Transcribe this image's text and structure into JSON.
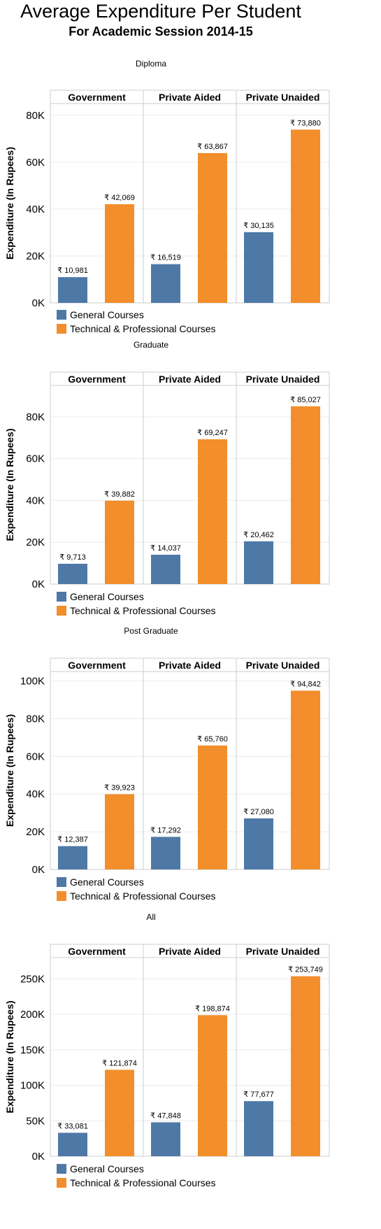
{
  "title": "Average Expenditure Per Student",
  "subtitle": "For Academic Session 2014-15",
  "colors": {
    "general": "#4e79a7",
    "technical": "#f28e2b",
    "grid": "#ececec",
    "border": "#cccccc"
  },
  "chart_data": [
    {
      "type": "bar",
      "title": "Diploma",
      "categories": [
        "Government",
        "Private Aided",
        "Private Unaided"
      ],
      "ylabel": "Expenditure (In Rupees)",
      "ylim": [
        0,
        85000
      ],
      "yticks": [
        0,
        20000,
        40000,
        60000,
        80000
      ],
      "ytick_labels": [
        "0K",
        "20K",
        "40K",
        "60K",
        "80K"
      ],
      "series": [
        {
          "name": "General Courses",
          "values": [
            10981,
            16519,
            30135
          ],
          "labels": [
            "₹ 10,981",
            "₹ 16,519",
            "₹ 30,135"
          ]
        },
        {
          "name": "Technical & Professional Courses",
          "values": [
            42069,
            63867,
            73880
          ],
          "labels": [
            "₹ 42,069",
            "₹ 63,867",
            "₹ 73,880"
          ]
        }
      ]
    },
    {
      "type": "bar",
      "title": "Graduate",
      "categories": [
        "Government",
        "Private Aided",
        "Private Unaided"
      ],
      "ylabel": "Expenditure (In Rupees)",
      "ylim": [
        0,
        95000
      ],
      "yticks": [
        0,
        20000,
        40000,
        60000,
        80000
      ],
      "ytick_labels": [
        "0K",
        "20K",
        "40K",
        "60K",
        "80K"
      ],
      "series": [
        {
          "name": "General Courses",
          "values": [
            9713,
            14037,
            20462
          ],
          "labels": [
            "₹ 9,713",
            "₹ 14,037",
            "₹ 20,462"
          ]
        },
        {
          "name": "Technical & Professional Courses",
          "values": [
            39882,
            69247,
            85027
          ],
          "labels": [
            "₹ 39,882",
            "₹ 69,247",
            "₹ 85,027"
          ]
        }
      ]
    },
    {
      "type": "bar",
      "title": "Post Graduate",
      "categories": [
        "Government",
        "Private Aided",
        "Private Unaided"
      ],
      "ylabel": "Expenditure (In Rupees)",
      "ylim": [
        0,
        105000
      ],
      "yticks": [
        0,
        20000,
        40000,
        60000,
        80000,
        100000
      ],
      "ytick_labels": [
        "0K",
        "20K",
        "40K",
        "60K",
        "80K",
        "100K"
      ],
      "series": [
        {
          "name": "General Courses",
          "values": [
            12387,
            17292,
            27080
          ],
          "labels": [
            "₹ 12,387",
            "₹ 17,292",
            "₹ 27,080"
          ]
        },
        {
          "name": "Technical & Professional Courses",
          "values": [
            39923,
            65760,
            94842
          ],
          "labels": [
            "₹ 39,923",
            "₹ 65,760",
            "₹ 94,842"
          ]
        }
      ]
    },
    {
      "type": "bar",
      "title": "All",
      "categories": [
        "Government",
        "Private Aided",
        "Private Unaided"
      ],
      "ylabel": "Expenditure (In Rupees)",
      "ylim": [
        0,
        280000
      ],
      "yticks": [
        0,
        50000,
        100000,
        150000,
        200000,
        250000
      ],
      "ytick_labels": [
        "0K",
        "50K",
        "100K",
        "150K",
        "200K",
        "250K"
      ],
      "series": [
        {
          "name": "General Courses",
          "values": [
            33081,
            47848,
            77677
          ],
          "labels": [
            "₹ 33,081",
            "₹ 47,848",
            "₹ 77,677"
          ]
        },
        {
          "name": "Technical & Professional Courses",
          "values": [
            121874,
            198874,
            253749
          ],
          "labels": [
            "₹ 121,874",
            "₹ 198,874",
            "₹ 253,749"
          ]
        }
      ]
    }
  ]
}
